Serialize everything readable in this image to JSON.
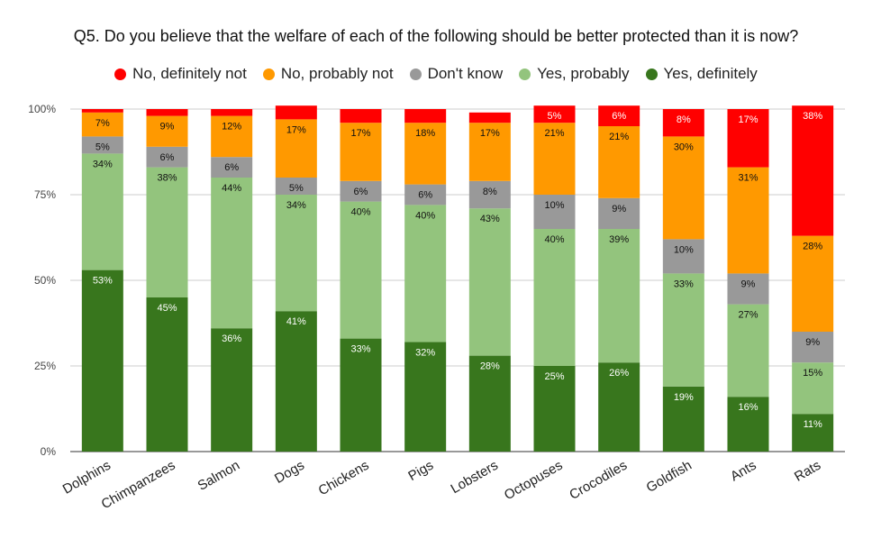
{
  "chart_data": {
    "type": "bar",
    "stacked": true,
    "title": "Q5. Do you believe that the welfare of each of the following should be better protected than it is now?",
    "categories": [
      "Dolphins",
      "Chimpanzees",
      "Salmon",
      "Dogs",
      "Chickens",
      "Pigs",
      "Lobsters",
      "Octopuses",
      "Crocodiles",
      "Goldfish",
      "Ants",
      "Rats"
    ],
    "series": [
      {
        "name": "Yes, definitely",
        "color": "#38761d",
        "label_color": "#ffffff",
        "values": [
          53,
          45,
          36,
          41,
          33,
          32,
          28,
          25,
          26,
          19,
          16,
          11
        ],
        "labels": [
          "53%",
          "45%",
          "36%",
          "41%",
          "33%",
          "32%",
          "28%",
          "25%",
          "26%",
          "19%",
          "16%",
          "11%"
        ]
      },
      {
        "name": "Yes, probably",
        "color": "#93c47d",
        "label_color": "#111111",
        "values": [
          34,
          38,
          44,
          34,
          40,
          40,
          43,
          40,
          39,
          33,
          27,
          15
        ],
        "labels": [
          "34%",
          "38%",
          "44%",
          "34%",
          "40%",
          "40%",
          "43%",
          "40%",
          "39%",
          "33%",
          "27%",
          "15%"
        ]
      },
      {
        "name": "Don't know",
        "color": "#999999",
        "label_color": "#111111",
        "values": [
          5,
          6,
          6,
          5,
          6,
          6,
          8,
          10,
          9,
          10,
          9,
          9
        ],
        "labels": [
          "5%",
          "6%",
          "6%",
          "5%",
          "6%",
          "6%",
          "8%",
          "10%",
          "9%",
          "10%",
          "9%",
          "9%"
        ]
      },
      {
        "name": "No, probably not",
        "color": "#ff9900",
        "label_color": "#111111",
        "values": [
          7,
          9,
          12,
          17,
          17,
          18,
          17,
          21,
          21,
          30,
          31,
          28
        ],
        "labels": [
          "7%",
          "9%",
          "12%",
          "17%",
          "17%",
          "18%",
          "17%",
          "21%",
          "21%",
          "30%",
          "31%",
          "28%"
        ]
      },
      {
        "name": "No, definitely not",
        "color": "#ff0000",
        "label_color": "#ffffff",
        "values": [
          1,
          2,
          2,
          4,
          4,
          4,
          3,
          5,
          6,
          8,
          17,
          38
        ],
        "labels": [
          "",
          "",
          "",
          "",
          "",
          "",
          "",
          "5%",
          "6%",
          "8%",
          "17%",
          "38%"
        ]
      }
    ],
    "legend_order": [
      "No, definitely not",
      "No, probably not",
      "Don't know",
      "Yes, probably",
      "Yes, definitely"
    ],
    "legend_position": "top",
    "yticks": [
      "0%",
      "25%",
      "50%",
      "75%",
      "100%"
    ],
    "ylim": [
      0,
      100
    ],
    "grid": true,
    "xlabel": "",
    "ylabel": ""
  }
}
